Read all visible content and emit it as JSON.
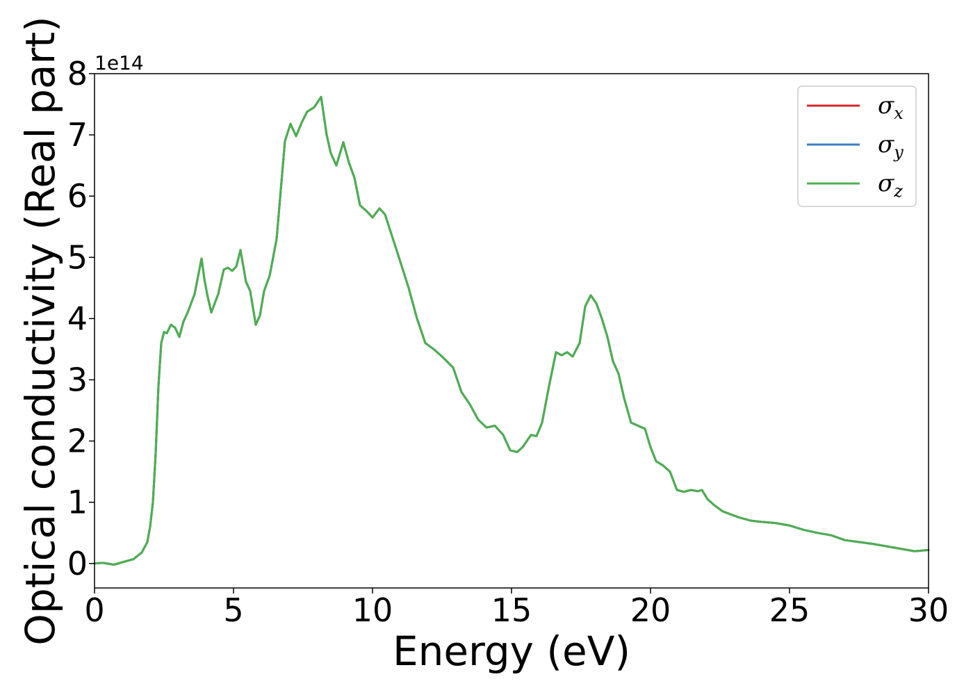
{
  "chart_data": {
    "type": "line",
    "title": "",
    "xlabel": "Energy (eV)",
    "ylabel": "Optical conductivity (Real part)",
    "y_offset_label": "1e14",
    "xlim": [
      0,
      30
    ],
    "ylim": [
      -0.4,
      8.0
    ],
    "xticks": [
      0,
      5,
      10,
      15,
      20,
      25,
      30
    ],
    "yticks": [
      0,
      1,
      2,
      3,
      4,
      5,
      6,
      7,
      8
    ],
    "grid": false,
    "legend_position": "top-right",
    "x": [
      0,
      0.3,
      0.7,
      1.0,
      1.4,
      1.7,
      1.9,
      2.0,
      2.1,
      2.2,
      2.3,
      2.4,
      2.5,
      2.6,
      2.75,
      2.9,
      3.05,
      3.2,
      3.35,
      3.6,
      3.85,
      3.95,
      4.05,
      4.2,
      4.45,
      4.65,
      4.8,
      4.95,
      5.1,
      5.25,
      5.45,
      5.6,
      5.8,
      5.95,
      6.1,
      6.3,
      6.55,
      6.85,
      7.05,
      7.25,
      7.45,
      7.65,
      7.9,
      8.15,
      8.35,
      8.5,
      8.7,
      8.95,
      9.15,
      9.35,
      9.55,
      9.8,
      10.0,
      10.25,
      10.45,
      10.7,
      10.95,
      11.3,
      11.6,
      11.9,
      12.2,
      12.5,
      12.9,
      13.2,
      13.5,
      13.8,
      14.1,
      14.4,
      14.7,
      14.95,
      15.2,
      15.4,
      15.7,
      15.9,
      16.1,
      16.35,
      16.6,
      16.8,
      17.0,
      17.2,
      17.45,
      17.65,
      17.85,
      18.05,
      18.25,
      18.45,
      18.65,
      18.85,
      19.05,
      19.3,
      19.55,
      19.8,
      20.0,
      20.2,
      20.45,
      20.7,
      20.95,
      21.2,
      21.45,
      21.7,
      21.85,
      22.05,
      22.3,
      22.6,
      22.9,
      23.2,
      23.6,
      24.0,
      24.5,
      25.0,
      25.5,
      26.0,
      26.5,
      27.0,
      27.5,
      28.0,
      28.5,
      29.0,
      29.5,
      30.0
    ],
    "y": [
      0.0,
      0.01,
      -0.02,
      0.02,
      0.07,
      0.18,
      0.35,
      0.6,
      1.0,
      1.8,
      2.9,
      3.6,
      3.78,
      3.76,
      3.9,
      3.85,
      3.7,
      3.95,
      4.1,
      4.4,
      4.98,
      4.65,
      4.4,
      4.1,
      4.4,
      4.8,
      4.83,
      4.78,
      4.85,
      5.12,
      4.6,
      4.45,
      3.9,
      4.05,
      4.45,
      4.7,
      5.3,
      6.9,
      7.18,
      6.98,
      7.2,
      7.38,
      7.45,
      7.62,
      7.0,
      6.7,
      6.5,
      6.88,
      6.55,
      6.3,
      5.85,
      5.75,
      5.65,
      5.8,
      5.7,
      5.35,
      5.0,
      4.5,
      4.0,
      3.6,
      3.5,
      3.38,
      3.2,
      2.8,
      2.6,
      2.35,
      2.22,
      2.25,
      2.1,
      1.85,
      1.82,
      1.9,
      2.1,
      2.08,
      2.3,
      2.9,
      3.45,
      3.4,
      3.45,
      3.38,
      3.6,
      4.2,
      4.38,
      4.25,
      4.0,
      3.7,
      3.3,
      3.1,
      2.7,
      2.3,
      2.25,
      2.2,
      1.9,
      1.67,
      1.6,
      1.5,
      1.2,
      1.17,
      1.2,
      1.18,
      1.2,
      1.05,
      0.95,
      0.85,
      0.8,
      0.75,
      0.7,
      0.68,
      0.66,
      0.62,
      0.55,
      0.5,
      0.46,
      0.38,
      0.35,
      0.32,
      0.28,
      0.24,
      0.2,
      0.22
    ],
    "series": [
      {
        "name": "σx",
        "label_base": "σ",
        "label_sub": "x",
        "color": "#d62728",
        "y_ref": "y"
      },
      {
        "name": "σy",
        "label_base": "σ",
        "label_sub": "y",
        "color": "#3a7ec0",
        "y_ref": "y"
      },
      {
        "name": "σz",
        "label_base": "σ",
        "label_sub": "z",
        "color": "#4caf50",
        "y_ref": "y"
      }
    ]
  }
}
